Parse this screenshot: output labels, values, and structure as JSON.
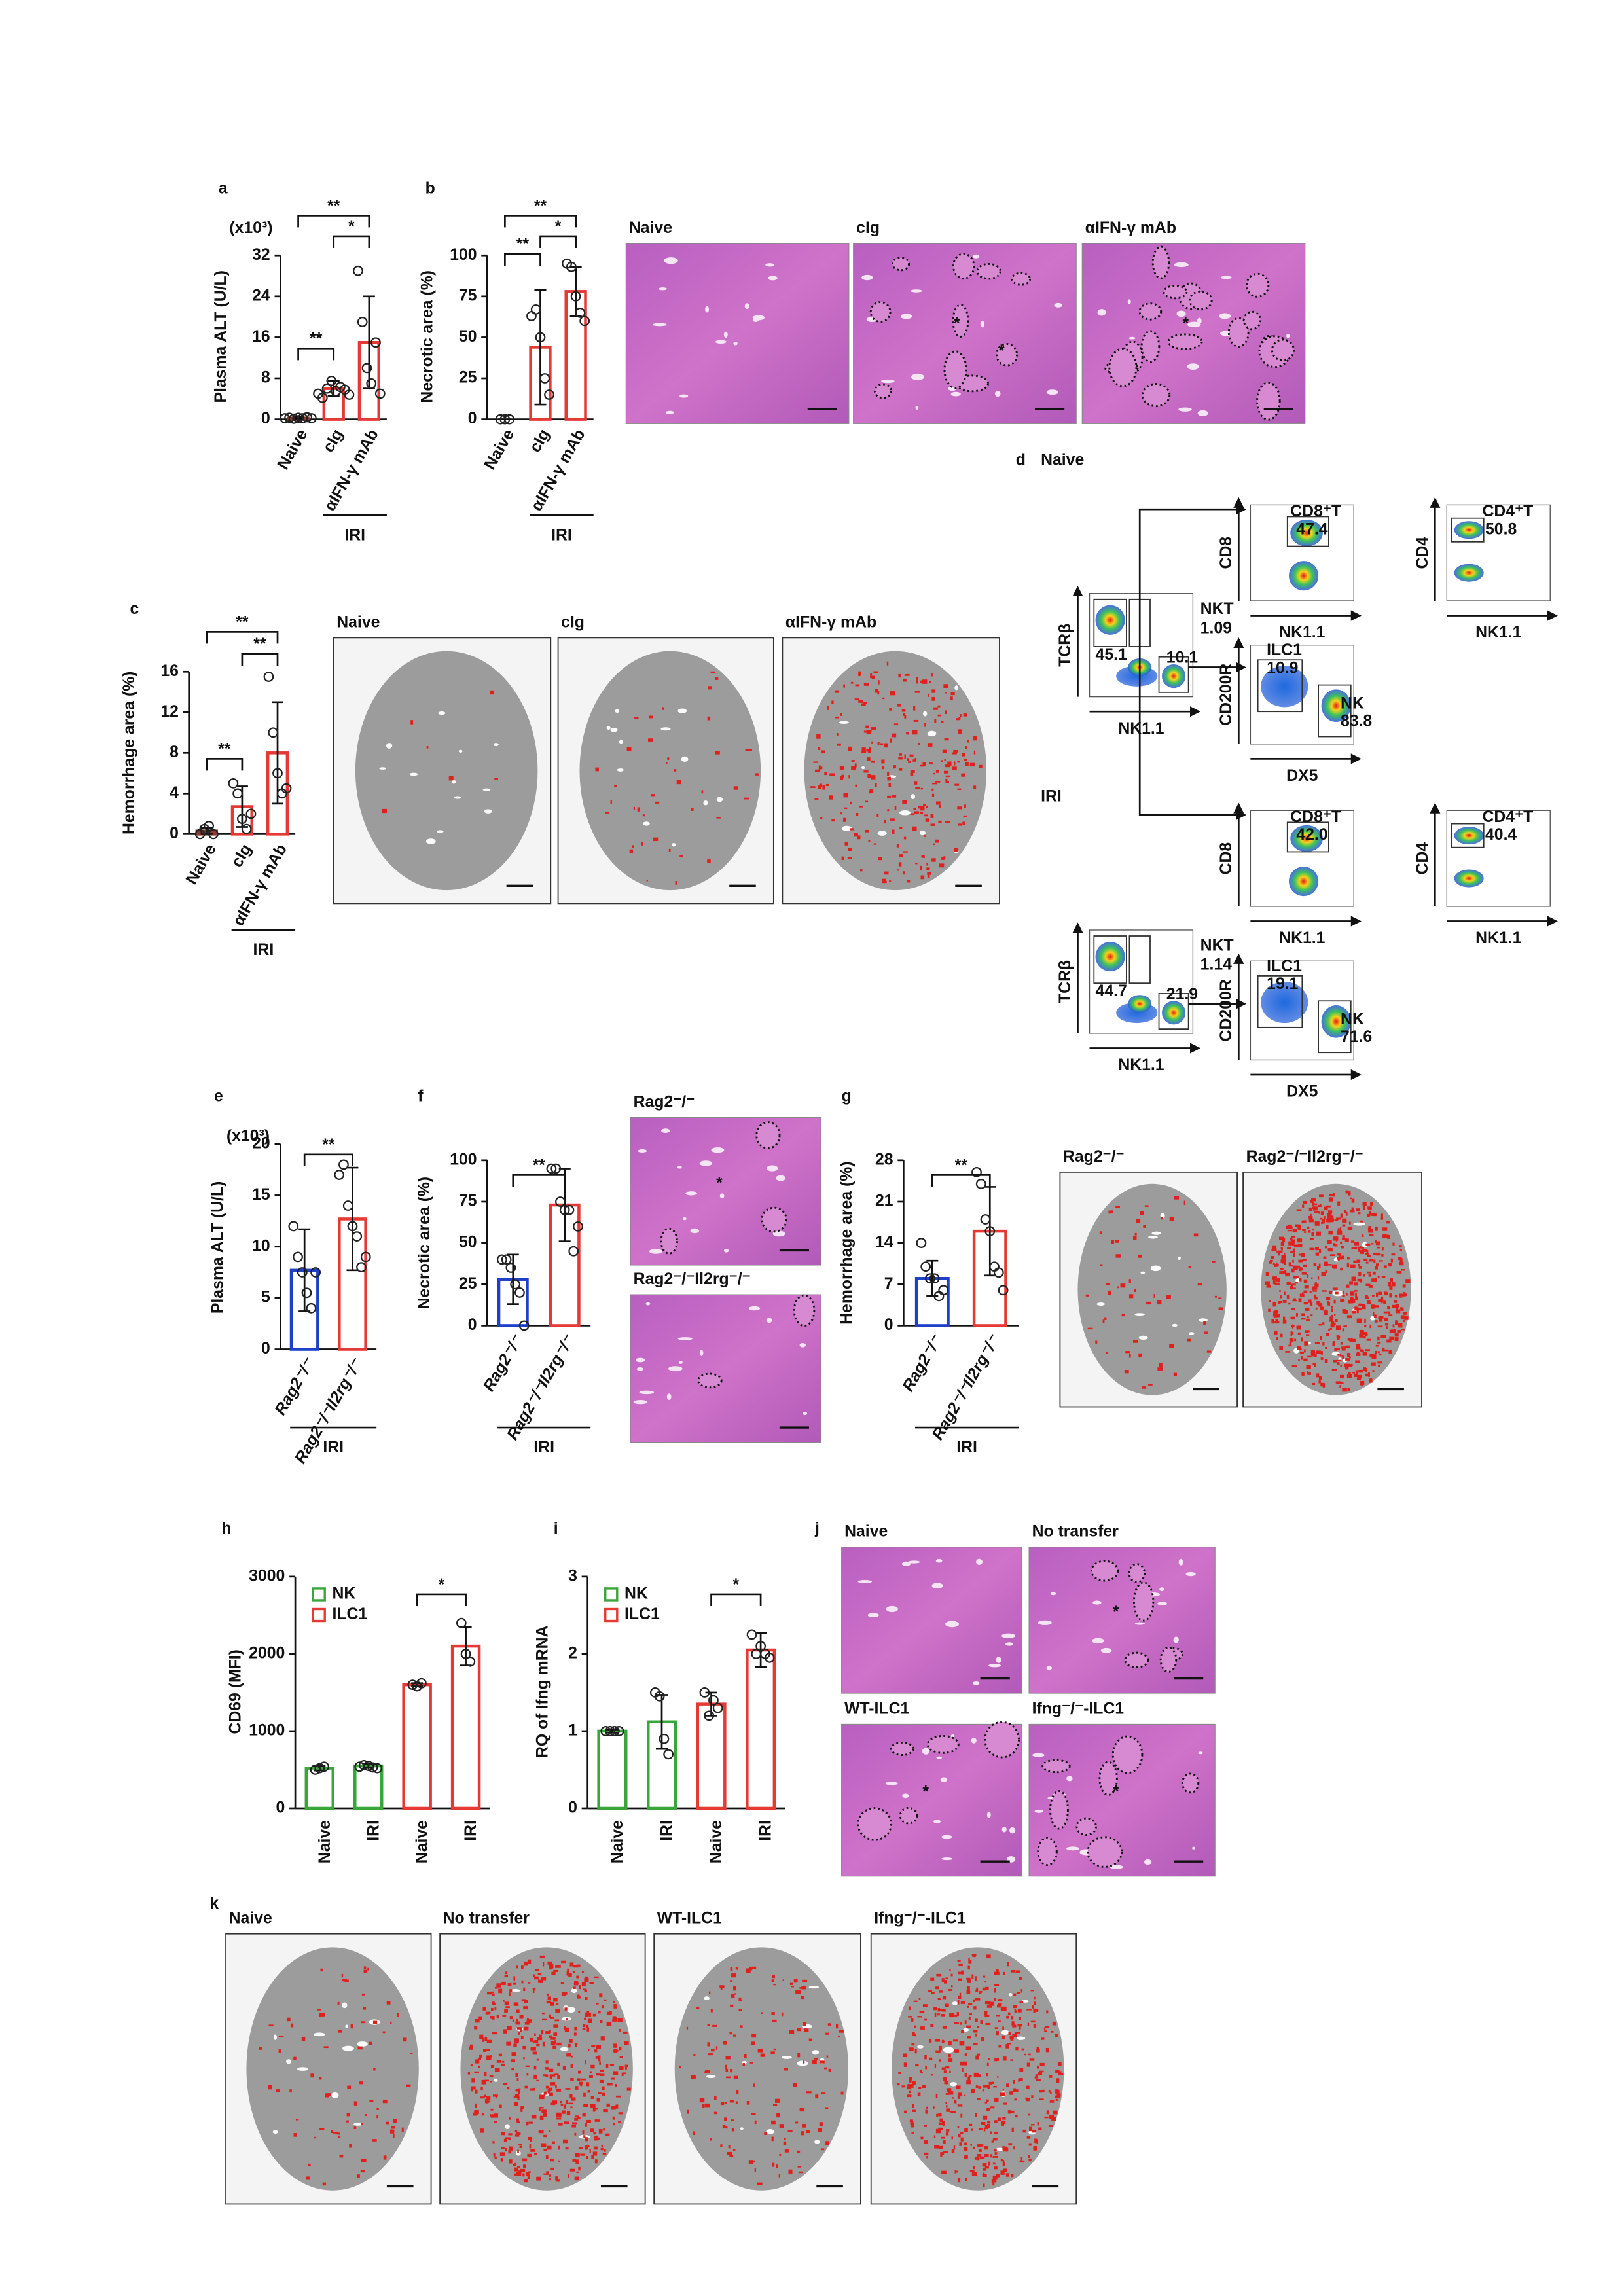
{
  "chart_data": [
    {
      "type": "bar",
      "panel": "a",
      "ylabel": "Plasma ALT (U/L)",
      "unit": "(x10³)",
      "categories": [
        "Naive",
        "cIg",
        "αIFN-γ mAb"
      ],
      "values": [
        0.25,
        6,
        15
      ],
      "errors": [
        0.2,
        1.5,
        9
      ],
      "points": [
        [
          0.2,
          0.3,
          0.1,
          0.3,
          0.2,
          0.4,
          0.2
        ],
        [
          5,
          4.2,
          6,
          7.5,
          5.5,
          6.3,
          5.8,
          4.8
        ],
        [
          29,
          19,
          10,
          7,
          15,
          5
        ]
      ],
      "colors": [
        "#8b3a2e",
        "#e53935",
        "#e53935"
      ],
      "ylim": [
        0,
        32
      ],
      "yticks": [
        0,
        8,
        16,
        24,
        32
      ],
      "significance": [
        "**",
        "**",
        "*"
      ],
      "group_label": "IRI"
    },
    {
      "type": "bar",
      "panel": "b",
      "ylabel": "Necrotic area (%)",
      "categories": [
        "Naive",
        "cIg",
        "αIFN-γ mAb"
      ],
      "values": [
        0,
        44,
        78
      ],
      "errors": [
        0,
        35,
        15
      ],
      "points": [
        [
          0,
          0,
          0
        ],
        [
          63,
          67,
          50,
          25,
          15
        ],
        [
          95,
          93,
          75,
          65,
          60
        ]
      ],
      "colors": [
        "#8b3a2e",
        "#e53935",
        "#e53935"
      ],
      "ylim": [
        0,
        100
      ],
      "yticks": [
        0,
        25,
        50,
        75,
        100
      ],
      "significance": [
        "**",
        "**",
        "*"
      ],
      "group_label": "IRI"
    },
    {
      "type": "bar",
      "panel": "c",
      "ylabel": "Hemorrhage area (%)",
      "categories": [
        "Naive",
        "cIg",
        "αIFN-γ mAb"
      ],
      "values": [
        0.3,
        2.7,
        8
      ],
      "errors": [
        0.3,
        2,
        5
      ],
      "points": [
        [
          0,
          0.5,
          0.8,
          0
        ],
        [
          5,
          4,
          1.5,
          0.5,
          2
        ],
        [
          15.5,
          10,
          6,
          4,
          4.5
        ]
      ],
      "colors": [
        "#8b3a2e",
        "#e53935",
        "#e53935"
      ],
      "ylim": [
        0,
        16
      ],
      "yticks": [
        0,
        4,
        8,
        12,
        16
      ],
      "significance": [
        "**",
        "**",
        "**"
      ],
      "group_label": "IRI"
    },
    {
      "type": "bar",
      "panel": "e",
      "ylabel": "Plasma ALT (U/L)",
      "unit": "(x10³)",
      "categories": [
        "Rag2⁻/⁻",
        "Rag2⁻/⁻Il2rg⁻/⁻"
      ],
      "values": [
        7.7,
        12.7
      ],
      "errors": [
        4,
        5
      ],
      "points": [
        [
          12,
          9,
          7.5,
          5.5,
          4,
          7.5
        ],
        [
          17,
          18,
          14,
          12,
          11,
          8,
          9
        ]
      ],
      "colors": [
        "#1e40c8",
        "#e53935"
      ],
      "ylim": [
        0,
        20
      ],
      "yticks": [
        0,
        5,
        10,
        15,
        20
      ],
      "significance": [
        "**"
      ],
      "group_label": "IRI"
    },
    {
      "type": "bar",
      "panel": "f",
      "ylabel": "Necrotic area (%)",
      "categories": [
        "Rag2⁻/⁻",
        "Rag2⁻/⁻Il2rg⁻/⁻"
      ],
      "values": [
        28,
        73
      ],
      "errors": [
        15,
        22
      ],
      "points": [
        [
          40,
          40,
          35,
          25,
          20,
          0
        ],
        [
          95,
          95,
          75,
          70,
          70,
          45,
          60
        ]
      ],
      "colors": [
        "#1e40c8",
        "#e53935"
      ],
      "ylim": [
        0,
        100
      ],
      "yticks": [
        0,
        25,
        50,
        75,
        100
      ],
      "significance": [
        "**"
      ],
      "group_label": "IRI"
    },
    {
      "type": "bar",
      "panel": "g",
      "ylabel": "Hemorrhage area (%)",
      "categories": [
        "Rag2⁻/⁻",
        "Rag2⁻/⁻Il2rg⁻/⁻"
      ],
      "values": [
        8,
        16
      ],
      "errors": [
        3,
        7.5
      ],
      "points": [
        [
          14,
          10,
          8,
          8,
          5,
          6
        ],
        [
          26,
          24,
          18,
          16,
          10,
          9,
          6
        ]
      ],
      "colors": [
        "#1e40c8",
        "#e53935"
      ],
      "ylim": [
        0,
        28
      ],
      "yticks": [
        0,
        7,
        14,
        21,
        28
      ],
      "significance": [
        "**"
      ],
      "group_label": "IRI"
    },
    {
      "type": "bar",
      "panel": "h",
      "ylabel": "CD69 (MFI)",
      "categories": [
        "Naive",
        "IRI",
        "Naive",
        "IRI"
      ],
      "series": [
        {
          "name": "NK",
          "color": "#3aa53a",
          "values": [
            520,
            550,
            null,
            null
          ],
          "errors": [
            30,
            25,
            null,
            null
          ],
          "points": [
            [
              500,
              520,
              540
            ],
            [
              540,
              560,
              550,
              530,
              520
            ],
            null,
            null
          ]
        },
        {
          "name": "ILC1",
          "color": "#e53935",
          "values": [
            null,
            null,
            1600,
            2100
          ],
          "errors": [
            null,
            null,
            20,
            250
          ],
          "points": [
            null,
            null,
            [
              1600,
              1580,
              1620
            ],
            [
              2400,
              2000,
              1900
            ]
          ]
        }
      ],
      "ylim": [
        0,
        3000
      ],
      "yticks": [
        0,
        1000,
        2000,
        3000
      ],
      "significance": [
        "*"
      ]
    },
    {
      "type": "bar",
      "panel": "i",
      "ylabel": "RQ of Ifng mRNA",
      "categories": [
        "Naive",
        "IRI",
        "Naive",
        "IRI"
      ],
      "series": [
        {
          "name": "NK",
          "color": "#3aa53a",
          "values": [
            1,
            1.12,
            null,
            null
          ],
          "errors": [
            0.02,
            0.35,
            null,
            null
          ],
          "points": [
            [
              1,
              1,
              1,
              1
            ],
            [
              1.5,
              1.45,
              0.9,
              0.7
            ],
            null,
            null
          ]
        },
        {
          "name": "ILC1",
          "color": "#e53935",
          "values": [
            null,
            null,
            1.35,
            2.05
          ],
          "errors": [
            null,
            null,
            0.15,
            0.22
          ],
          "points": [
            null,
            null,
            [
              1.5,
              1.2,
              1.4,
              1.3
            ],
            [
              2.25,
              2,
              2.1,
              2,
              1.95
            ]
          ]
        }
      ],
      "ylim": [
        0,
        3
      ],
      "yticks": [
        0,
        1,
        2,
        3
      ],
      "significance": [
        "*"
      ]
    }
  ],
  "histology": {
    "b": [
      {
        "label": "Naive"
      },
      {
        "label": "cIg",
        "marks": [
          "*",
          "*"
        ]
      },
      {
        "label": "αIFN-γ mAb",
        "marks": [
          "*"
        ]
      }
    ],
    "c": [
      {
        "label": "Naive"
      },
      {
        "label": "cIg"
      },
      {
        "label": "αIFN-γ mAb"
      }
    ],
    "f": [
      {
        "label": "Rag2⁻/⁻",
        "marks": [
          "*"
        ]
      },
      {
        "label": "Rag2⁻/⁻Il2rg⁻/⁻"
      }
    ],
    "g": [
      {
        "label": "Rag2⁻/⁻"
      },
      {
        "label": "Rag2⁻/⁻Il2rg⁻/⁻"
      }
    ],
    "j": {
      "panel": "j",
      "images": [
        {
          "label": "Naive"
        },
        {
          "label": "No transfer",
          "marks": [
            "*"
          ]
        },
        {
          "label": "WT-ILC1",
          "marks": [
            "*"
          ]
        },
        {
          "label": "Ifng⁻/⁻-ILC1",
          "marks": [
            "*"
          ]
        }
      ]
    },
    "k": {
      "panel": "k",
      "images": [
        {
          "label": "Naive"
        },
        {
          "label": "No transfer"
        },
        {
          "label": "WT-ILC1"
        },
        {
          "label": "Ifng⁻/⁻-ILC1"
        }
      ]
    }
  },
  "flow": {
    "panel": "d",
    "groups": [
      {
        "name": "Naive",
        "gate_plot": {
          "x_label": "NK1.1",
          "y_label": "TCRβ",
          "gates": [
            "NKT",
            "1.09",
            "45.1",
            "10.1"
          ]
        },
        "cd8": {
          "x_label": "NK1.1",
          "y_label": "CD8",
          "gates": [
            "CD8⁺T",
            "47.4"
          ]
        },
        "cd4": {
          "x_label": "NK1.1",
          "y_label": "CD4",
          "gates": [
            "CD4⁺T",
            "50.8"
          ]
        },
        "ilc": {
          "x_label": "DX5",
          "y_label": "CD200R",
          "gates": [
            "ILC1",
            "10.9",
            "NK",
            "83.8"
          ]
        }
      },
      {
        "name": "IRI",
        "gate_plot": {
          "x_label": "NK1.1",
          "y_label": "TCRβ",
          "gates": [
            "NKT",
            "1.14",
            "44.7",
            "21.9"
          ]
        },
        "cd8": {
          "x_label": "NK1.1",
          "y_label": "CD8",
          "gates": [
            "CD8⁺T",
            "42.0"
          ]
        },
        "cd4": {
          "x_label": "NK1.1",
          "y_label": "CD4",
          "gates": [
            "CD4⁺T",
            "40.4"
          ]
        },
        "ilc": {
          "x_label": "DX5",
          "y_label": "CD200R",
          "gates": [
            "ILC1",
            "19.1",
            "NK",
            "71.6"
          ]
        }
      }
    ]
  }
}
